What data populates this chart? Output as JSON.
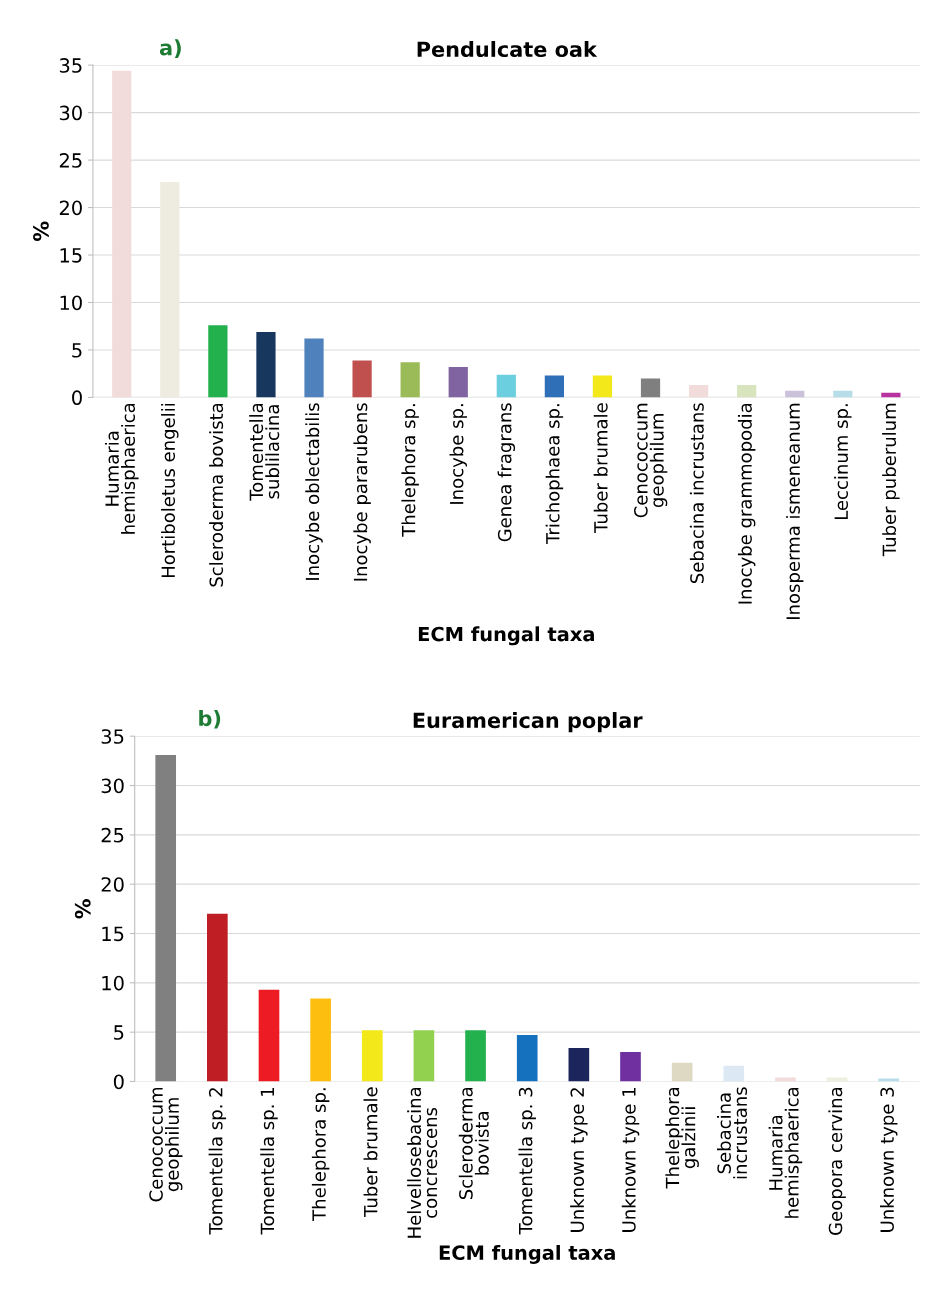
{
  "chart_data": [
    {
      "type": "bar",
      "title": "Pendulcate oak",
      "xlabel": "ECM fungal taxa",
      "ylabel": "%",
      "annotations": [
        "a)"
      ],
      "categories": [
        "Humaria\nhemisphaerica",
        "Hortiboletus engelii",
        "Scleroderma bovista",
        "Tomentella\nsublilacina",
        "Inocybe oblectabilis",
        "Inocybe pararubens",
        "Thelephora sp.",
        "Inocybe sp.",
        "Genea fragrans",
        "Trichophaea sp.",
        "Tuber brumale",
        "Cenococcum\ngeophilum",
        "Sebacina incrustans",
        "Inocybe grammopodia",
        "Inosperma ismeneanum",
        "Leccinum sp.",
        "Tuber puberulum"
      ],
      "values": [
        34.4,
        22.7,
        7.6,
        6.9,
        6.2,
        3.9,
        3.7,
        3.2,
        2.4,
        2.3,
        2.3,
        2.0,
        1.3,
        1.3,
        0.7,
        0.7,
        0.5
      ],
      "colors": [
        "#f2dcdb",
        "#eeece1",
        "#22b14c",
        "#17375e",
        "#4f81bd",
        "#c0504d",
        "#9bbb59",
        "#8064a2",
        "#6ccfdf",
        "#2e6fb8",
        "#f2e81a",
        "#7f7f7f",
        "#f2dcdb",
        "#d7e4bd",
        "#ccc1da",
        "#b7dee8",
        "#b8339f"
      ],
      "ylim": [
        0,
        35
      ],
      "yticks": [
        0,
        5,
        10,
        15,
        20,
        25,
        30,
        35
      ],
      "grid": "y"
    },
    {
      "type": "bar",
      "title": "Euramerican poplar",
      "xlabel": "ECM fungal taxa",
      "ylabel": "%",
      "annotations": [
        "b)"
      ],
      "categories": [
        "Cenococcum\ngeophilum",
        "Tomentella sp. 2",
        "Tomentella sp. 1",
        "Thelephora sp.",
        "Tuber brumale",
        "Helvellosebacina\nconcrescens",
        "Scleroderma\nbovista",
        "Tomentella sp. 3",
        "Unknown type 2",
        "Unknown type 1",
        "Thelephora\ngalzinii",
        "Sebacina\nincrustans",
        "Humaria\nhemisphaerica",
        "Geopora cervina",
        "Unknown type 3"
      ],
      "values": [
        33.1,
        17.0,
        9.3,
        8.4,
        5.2,
        5.2,
        5.2,
        4.7,
        3.4,
        3.0,
        1.9,
        1.6,
        0.4,
        0.4,
        0.3
      ],
      "colors": [
        "#808080",
        "#be1e24",
        "#ed1c24",
        "#fdbe10",
        "#f2e81a",
        "#92d050",
        "#22b14c",
        "#1570be",
        "#1c255c",
        "#7030a0",
        "#ddd9c3",
        "#dce9f5",
        "#f2dcdb",
        "#ebf1de",
        "#b7dee8"
      ],
      "ylim": [
        0,
        35
      ],
      "yticks": [
        0,
        5,
        10,
        15,
        20,
        25,
        30,
        35
      ],
      "grid": "y"
    }
  ]
}
